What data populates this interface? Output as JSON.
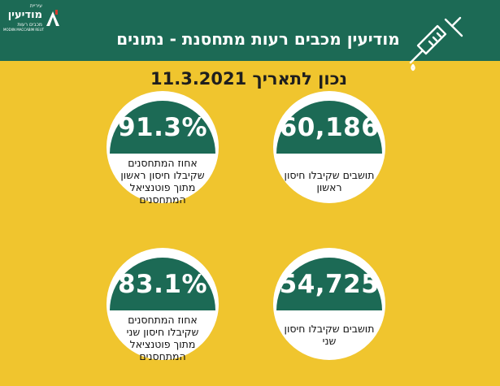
{
  "header": {
    "logo": {
      "top": "עיריית",
      "main": "מודיעין",
      "sub": "מכבים רעות",
      "en": "MODIIN MACCABIM REUT"
    },
    "title": "מודיעין מכבים רעות מתחסנת - נתונים",
    "icon": "syringe-icon"
  },
  "date_line": "נכון לתאריך  11.3.2021",
  "stats": [
    {
      "value": "60,186",
      "label": "תושבים שקיבלו חיסון ראשון"
    },
    {
      "value": "91.3%",
      "label": "אחוז המתחסנים שקיבלו חיסון ראשון מתוך פוטנציאל המתחסנים"
    },
    {
      "value": "54,725",
      "label": "תושבים שקיבלו חיסון שני"
    },
    {
      "value": "83.1%",
      "label": "אחוז המתחסנים שקיבלו חיסון שני מתוך פוטנציאל המתחסנים"
    }
  ],
  "colors": {
    "header": "#1c6a55",
    "background": "#f0c52e",
    "card": "#ffffff"
  }
}
